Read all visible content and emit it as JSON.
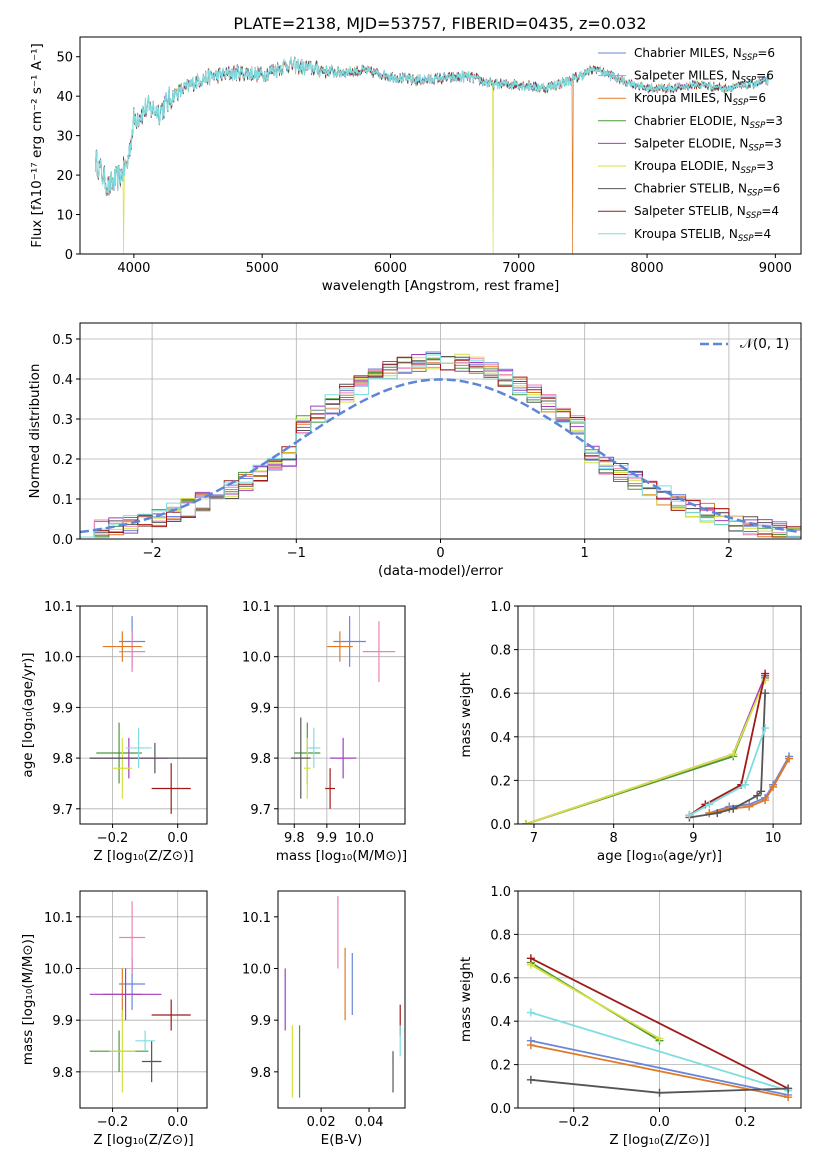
{
  "title": "PLATE=2138, MJD=53757, FIBERID=0435, z=0.032",
  "colors": {
    "Chabrier MILES": "#6a86d9",
    "Salpeter MILES": "#ee82b4",
    "Kroupa MILES": "#e07a26",
    "Chabrier ELODIE": "#4a9a3a",
    "Salpeter ELODIE": "#a43cc0",
    "Kroupa ELODIE": "#d6e040",
    "Chabrier STELIB": "#555555",
    "Salpeter STELIB": "#a01a1a",
    "Kroupa STELIB": "#7fdde0",
    "gauss": "#5b86d9"
  },
  "legend": [
    {
      "name": "Chabrier MILES",
      "pre": "Chabrier MILES, N",
      "sub": "SSP",
      "post": "=6"
    },
    {
      "name": "Salpeter MILES",
      "pre": "Salpeter MILES, N",
      "sub": "SSP",
      "post": "=6"
    },
    {
      "name": "Kroupa MILES",
      "pre": "Kroupa MILES, N",
      "sub": "SSP",
      "post": "=6"
    },
    {
      "name": "Chabrier ELODIE",
      "pre": "Chabrier ELODIE, N",
      "sub": "SSP",
      "post": "=3"
    },
    {
      "name": "Salpeter ELODIE",
      "pre": "Salpeter ELODIE, N",
      "sub": "SSP",
      "post": "=3"
    },
    {
      "name": "Kroupa ELODIE",
      "pre": "Kroupa ELODIE, N",
      "sub": "SSP",
      "post": "=3"
    },
    {
      "name": "Chabrier STELIB",
      "pre": "Chabrier STELIB, N",
      "sub": "SSP",
      "post": "=6"
    },
    {
      "name": "Salpeter STELIB",
      "pre": "Salpeter STELIB, N",
      "sub": "SSP",
      "post": "=4"
    },
    {
      "name": "Kroupa STELIB",
      "pre": "Kroupa STELIB, N",
      "sub": "SSP",
      "post": "=4"
    }
  ],
  "chart_data": [
    {
      "id": "spectrum",
      "type": "line",
      "xlabel": "wavelength [Angstrom, rest frame]",
      "ylabel": "Flux [fλ10⁻¹⁷ erg cm⁻² s⁻¹ A⁻¹]",
      "xlim": [
        3580,
        9200
      ],
      "ylim": [
        0,
        55
      ],
      "xticks": [
        4000,
        5000,
        6000,
        7000,
        8000,
        9000
      ],
      "yticks": [
        0,
        10,
        20,
        30,
        40,
        50
      ],
      "grid": false,
      "legend_position": "top-right",
      "continuum": {
        "x": [
          3700,
          3800,
          3900,
          3950,
          4000,
          4100,
          4200,
          4300,
          4400,
          4500,
          4600,
          4800,
          5000,
          5200,
          5400,
          5600,
          5800,
          6000,
          6200,
          6400,
          6600,
          6800,
          7000,
          7200,
          7400,
          7600,
          7800,
          8000,
          8200,
          8400,
          8600,
          8800,
          8950
        ],
        "y": [
          24,
          17,
          20,
          23,
          34,
          37,
          36,
          40,
          42,
          44,
          45,
          46,
          45.5,
          48,
          47,
          46,
          46.5,
          45,
          44,
          44.5,
          45,
          43,
          43,
          42,
          44,
          47,
          44,
          42,
          42,
          43,
          42,
          43,
          44
        ]
      },
      "drops": [
        {
          "series": "Kroupa ELODIE",
          "x": 3920
        },
        {
          "series": "Kroupa ELODIE",
          "x": 6800
        },
        {
          "series": "Kroupa MILES",
          "x": 7420
        }
      ]
    },
    {
      "id": "residuals",
      "type": "histogram",
      "xlabel": "(data-model)/error",
      "ylabel": "Normed distribution",
      "xlim": [
        -2.5,
        2.5
      ],
      "ylim": [
        0,
        0.54
      ],
      "xticks": [
        -2,
        -1,
        0,
        1,
        2
      ],
      "yticks": [
        0.0,
        0.1,
        0.2,
        0.3,
        0.4,
        0.5
      ],
      "grid": true,
      "bin_width": 0.1,
      "bin_start": -2.5,
      "gauss_label": "𝒩(0, 1)",
      "legend_position": "top-right"
    },
    {
      "id": "z-age",
      "type": "errorbar",
      "xlabel": "Z [log₁₀(Z/Z⊙)]",
      "ylabel": "age  [log₁₀(age/yr)]",
      "xlim": [
        -0.3,
        0.09
      ],
      "ylim": [
        9.67,
        10.1
      ],
      "xticks": [
        -0.2,
        0.0
      ],
      "yticks": [
        9.7,
        9.8,
        9.9,
        10.0,
        10.1
      ],
      "grid": true,
      "points": [
        {
          "series": "Chabrier MILES",
          "x": -0.14,
          "y": 10.03,
          "xerr": 0.04,
          "yerr": 0.05
        },
        {
          "series": "Salpeter MILES",
          "x": -0.14,
          "y": 10.01,
          "xerr": 0.04,
          "yerr": 0.04
        },
        {
          "series": "Kroupa MILES",
          "x": -0.17,
          "y": 10.02,
          "xerr": 0.06,
          "yerr": 0.03
        },
        {
          "series": "Chabrier ELODIE",
          "x": -0.18,
          "y": 9.81,
          "xerr": 0.07,
          "yerr": 0.06
        },
        {
          "series": "Salpeter ELODIE",
          "x": -0.15,
          "y": 9.8,
          "xerr": 0.12,
          "yerr": 0.04
        },
        {
          "series": "Kroupa ELODIE",
          "x": -0.17,
          "y": 9.78,
          "xerr": 0.03,
          "yerr": 0.06
        },
        {
          "series": "Chabrier STELIB",
          "x": -0.07,
          "y": 9.8,
          "xerr": 0.2,
          "yerr": 0.03
        },
        {
          "series": "Salpeter STELIB",
          "x": -0.02,
          "y": 9.74,
          "xerr": 0.06,
          "yerr": 0.05
        },
        {
          "series": "Kroupa STELIB",
          "x": -0.12,
          "y": 9.82,
          "xerr": 0.04,
          "yerr": 0.04
        }
      ]
    },
    {
      "id": "mass-age",
      "type": "errorbar",
      "xlabel": "mass [log₁₀(M/M⊙)]",
      "ylabel": "",
      "xlim": [
        9.75,
        10.14
      ],
      "ylim": [
        9.67,
        10.1
      ],
      "xticks": [
        9.8,
        9.9,
        10.0
      ],
      "yticks": [
        9.7,
        9.8,
        9.9,
        10.0,
        10.1
      ],
      "grid": true,
      "points": [
        {
          "series": "Chabrier MILES",
          "x": 9.97,
          "y": 10.03,
          "xerr": 0.05,
          "yerr": 0.05
        },
        {
          "series": "Salpeter MILES",
          "x": 10.06,
          "y": 10.01,
          "xerr": 0.05,
          "yerr": 0.06
        },
        {
          "series": "Kroupa MILES",
          "x": 9.94,
          "y": 10.02,
          "xerr": 0.04,
          "yerr": 0.03
        },
        {
          "series": "Chabrier ELODIE",
          "x": 9.84,
          "y": 9.81,
          "xerr": 0.04,
          "yerr": 0.06
        },
        {
          "series": "Salpeter ELODIE",
          "x": 9.95,
          "y": 9.8,
          "xerr": 0.04,
          "yerr": 0.04
        },
        {
          "series": "Kroupa ELODIE",
          "x": 9.84,
          "y": 9.78,
          "xerr": 0.01,
          "yerr": 0.06
        },
        {
          "series": "Chabrier STELIB",
          "x": 9.82,
          "y": 9.8,
          "xerr": 0.03,
          "yerr": 0.08
        },
        {
          "series": "Salpeter STELIB",
          "x": 9.91,
          "y": 9.74,
          "xerr": 0.015,
          "yerr": 0.04
        },
        {
          "series": "Kroupa STELIB",
          "x": 9.86,
          "y": 9.82,
          "xerr": 0.02,
          "yerr": 0.04
        }
      ]
    },
    {
      "id": "weight-age",
      "type": "line",
      "xlabel": "age  [log₁₀(age/yr)]",
      "ylabel": "mass weight",
      "xlim": [
        6.8,
        10.35
      ],
      "ylim": [
        0,
        1.0
      ],
      "xticks": [
        7,
        8,
        9,
        10
      ],
      "yticks": [
        0.0,
        0.2,
        0.4,
        0.6,
        0.8,
        1.0
      ],
      "grid": true,
      "series": [
        {
          "name": "Chabrier ELODIE",
          "x": [
            6.9,
            9.5,
            9.9
          ],
          "y": [
            0.0,
            0.31,
            0.67
          ]
        },
        {
          "name": "Salpeter ELODIE",
          "x": [
            6.9,
            9.5,
            9.9
          ],
          "y": [
            0.0,
            0.32,
            0.68
          ]
        },
        {
          "name": "Kroupa ELODIE",
          "x": [
            6.9,
            9.5,
            9.9
          ],
          "y": [
            0.0,
            0.32,
            0.66
          ]
        },
        {
          "name": "Chabrier MILES",
          "x": [
            9.2,
            9.45,
            9.7,
            9.9,
            10.0,
            10.2
          ],
          "y": [
            0.05,
            0.08,
            0.09,
            0.12,
            0.18,
            0.31
          ]
        },
        {
          "name": "Salpeter MILES",
          "x": [
            9.2,
            9.45,
            9.7,
            9.9,
            10.0,
            10.2
          ],
          "y": [
            0.05,
            0.07,
            0.08,
            0.11,
            0.17,
            0.3
          ]
        },
        {
          "name": "Kroupa MILES",
          "x": [
            9.2,
            9.45,
            9.7,
            9.9,
            10.0,
            10.2
          ],
          "y": [
            0.05,
            0.07,
            0.08,
            0.11,
            0.17,
            0.3
          ]
        },
        {
          "name": "Chabrier STELIB",
          "x": [
            8.95,
            9.3,
            9.5,
            9.8,
            9.85,
            9.9
          ],
          "y": [
            0.03,
            0.05,
            0.07,
            0.13,
            0.15,
            0.6
          ]
        },
        {
          "name": "Salpeter STELIB",
          "x": [
            8.95,
            9.15,
            9.6,
            9.9
          ],
          "y": [
            0.04,
            0.09,
            0.18,
            0.69
          ]
        },
        {
          "name": "Kroupa STELIB",
          "x": [
            8.95,
            9.2,
            9.65,
            9.9
          ],
          "y": [
            0.04,
            0.09,
            0.18,
            0.44
          ]
        }
      ]
    },
    {
      "id": "z-mass",
      "type": "errorbar",
      "xlabel": "Z [log₁₀(Z/Z⊙)]",
      "ylabel": "mass [log₁₀(M/M⊙)]",
      "xlim": [
        -0.3,
        0.09
      ],
      "ylim": [
        9.73,
        10.15
      ],
      "xticks": [
        -0.2,
        0.0
      ],
      "yticks": [
        9.8,
        9.9,
        10.0,
        10.1
      ],
      "grid": true,
      "points": [
        {
          "series": "Chabrier MILES",
          "x": -0.14,
          "y": 9.97,
          "xerr": 0.04,
          "yerr": 0.05
        },
        {
          "series": "Salpeter MILES",
          "x": -0.14,
          "y": 10.06,
          "xerr": 0.04,
          "yerr": 0.07
        },
        {
          "series": "Kroupa MILES",
          "x": -0.17,
          "y": 9.95,
          "xerr": 0.06,
          "yerr": 0.05
        },
        {
          "series": "Chabrier ELODIE",
          "x": -0.18,
          "y": 9.84,
          "xerr": 0.09,
          "yerr": 0.04
        },
        {
          "series": "Salpeter ELODIE",
          "x": -0.16,
          "y": 9.95,
          "xerr": 0.11,
          "yerr": 0.05
        },
        {
          "series": "Kroupa ELODIE",
          "x": -0.17,
          "y": 9.84,
          "xerr": 0.04,
          "yerr": 0.08
        },
        {
          "series": "Chabrier STELIB",
          "x": -0.08,
          "y": 9.82,
          "xerr": 0.03,
          "yerr": 0.04
        },
        {
          "series": "Salpeter STELIB",
          "x": -0.02,
          "y": 9.91,
          "xerr": 0.06,
          "yerr": 0.03
        },
        {
          "series": "Kroupa STELIB",
          "x": -0.1,
          "y": 9.86,
          "xerr": 0.03,
          "yerr": 0.02
        }
      ]
    },
    {
      "id": "ebv-mass",
      "type": "errorbar",
      "xlabel": "E(B-V)",
      "ylabel": "",
      "xlim": [
        0.002,
        0.055
      ],
      "ylim": [
        9.73,
        10.15
      ],
      "xticks": [
        0.02,
        0.04
      ],
      "yticks": [
        9.8,
        9.9,
        10.0,
        10.1
      ],
      "grid": false,
      "points": [
        {
          "series": "Chabrier MILES",
          "x": 0.033,
          "y": 9.97,
          "xerr": 0.0,
          "yerr": 0.06
        },
        {
          "series": "Salpeter MILES",
          "x": 0.027,
          "y": 10.07,
          "xerr": 0.0,
          "yerr": 0.07
        },
        {
          "series": "Kroupa MILES",
          "x": 0.03,
          "y": 9.97,
          "xerr": 0.0,
          "yerr": 0.07
        },
        {
          "series": "Chabrier ELODIE",
          "x": 0.011,
          "y": 9.82,
          "xerr": 0.0,
          "yerr": 0.07
        },
        {
          "series": "Salpeter ELODIE",
          "x": 0.005,
          "y": 9.94,
          "xerr": 0.0,
          "yerr": 0.06
        },
        {
          "series": "Kroupa ELODIE",
          "x": 0.008,
          "y": 9.82,
          "xerr": 0.0,
          "yerr": 0.07
        },
        {
          "series": "Chabrier STELIB",
          "x": 0.05,
          "y": 9.8,
          "xerr": 0.0,
          "yerr": 0.04
        },
        {
          "series": "Salpeter STELIB",
          "x": 0.053,
          "y": 9.9,
          "xerr": 0.0,
          "yerr": 0.03
        },
        {
          "series": "Kroupa STELIB",
          "x": 0.053,
          "y": 9.86,
          "xerr": 0.0,
          "yerr": 0.03
        }
      ]
    },
    {
      "id": "weight-z",
      "type": "line",
      "xlabel": "Z [log₁₀(Z/Z⊙)]",
      "ylabel": "mass weight",
      "xlim": [
        -0.33,
        0.33
      ],
      "ylim": [
        0,
        1.0
      ],
      "xticks": [
        -0.2,
        0.0,
        0.2
      ],
      "yticks": [
        0.0,
        0.2,
        0.4,
        0.6,
        0.8,
        1.0
      ],
      "grid": true,
      "series": [
        {
          "name": "Chabrier ELODIE",
          "x": [
            -0.3,
            0.0
          ],
          "y": [
            0.67,
            0.31
          ]
        },
        {
          "name": "Kroupa ELODIE",
          "x": [
            -0.3,
            0.0
          ],
          "y": [
            0.66,
            0.32
          ]
        },
        {
          "name": "Salpeter STELIB",
          "x": [
            -0.3,
            0.3
          ],
          "y": [
            0.69,
            0.09
          ]
        },
        {
          "name": "Kroupa STELIB",
          "x": [
            -0.3,
            0.3
          ],
          "y": [
            0.44,
            0.08
          ]
        },
        {
          "name": "Chabrier MILES",
          "x": [
            -0.3,
            0.3
          ],
          "y": [
            0.31,
            0.06
          ]
        },
        {
          "name": "Kroupa MILES",
          "x": [
            -0.3,
            0.3
          ],
          "y": [
            0.29,
            0.05
          ]
        },
        {
          "name": "Chabrier STELIB",
          "x": [
            -0.3,
            0.0,
            0.3
          ],
          "y": [
            0.13,
            0.07,
            0.09
          ]
        }
      ]
    }
  ]
}
